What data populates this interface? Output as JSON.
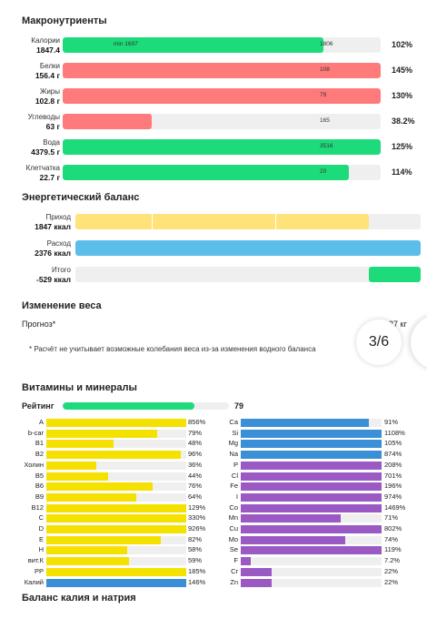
{
  "colors": {
    "green": "#1ddb7a",
    "red": "#ff7a7a",
    "yellow": "#ffe27a",
    "blue": "#5bbde8",
    "vit_yellow": "#f5e100",
    "vit_blue": "#3a8fd6",
    "purple": "#9b59c4",
    "track": "#efefef"
  },
  "macro": {
    "title": "Макронутриенты",
    "rows": [
      {
        "name": "Калории",
        "value": "1847.4",
        "fill": 0.82,
        "color": "green",
        "min": "min 1697",
        "mark": "1806",
        "pct": "102%"
      },
      {
        "name": "Белки",
        "value": "156.4 г",
        "fill": 1.0,
        "color": "red",
        "min": "",
        "mark": "108",
        "pct": "145%"
      },
      {
        "name": "Жиры",
        "value": "102.8 г",
        "fill": 1.0,
        "color": "red",
        "min": "",
        "mark": "79",
        "pct": "130%"
      },
      {
        "name": "Углеводы",
        "value": "63 г",
        "fill": 0.28,
        "color": "red",
        "min": "",
        "mark": "165",
        "pct": "38.2%"
      },
      {
        "name": "Вода",
        "value": "4379.5 г",
        "fill": 1.0,
        "color": "green",
        "min": "",
        "mark": "3516",
        "pct": "125%"
      },
      {
        "name": "Клетчатка",
        "value": "22.7 г",
        "fill": 0.9,
        "color": "green",
        "min": "",
        "mark": "20",
        "pct": "114%"
      }
    ]
  },
  "energy": {
    "title": "Энергетический баланс",
    "rows": [
      {
        "name": "Приход",
        "value": "1847 ккал",
        "fill_from": 0.0,
        "fill_to": 0.85,
        "color": "yellow"
      },
      {
        "name": "Расход",
        "value": "2376 ккал",
        "fill_from": 0.0,
        "fill_to": 1.0,
        "color": "blue"
      },
      {
        "name": "Итого",
        "value": "-529 ккал",
        "fill_from": 0.85,
        "fill_to": 1.0,
        "color": "green"
      }
    ]
  },
  "weight": {
    "title": "Изменение веса",
    "forecast_label": "Прогноз*",
    "forecast_value": "27 кг",
    "note": "* Расчёт не учитывает возможные колебания веса из-за изменения водного баланса"
  },
  "pager": {
    "label": "3/6"
  },
  "vitamins": {
    "title": "Витамины и минералы",
    "rating_label": "Рейтинг",
    "rating_value": "79",
    "rating_fill": 0.79,
    "left": [
      {
        "name": "A",
        "pct": "856%",
        "fill": 1.0,
        "color": "vit_yellow"
      },
      {
        "name": "b-car",
        "pct": "79%",
        "fill": 0.79,
        "color": "vit_yellow"
      },
      {
        "name": "B1",
        "pct": "48%",
        "fill": 0.48,
        "color": "vit_yellow"
      },
      {
        "name": "B2",
        "pct": "96%",
        "fill": 0.96,
        "color": "vit_yellow"
      },
      {
        "name": "Холин",
        "pct": "36%",
        "fill": 0.36,
        "color": "vit_yellow"
      },
      {
        "name": "B5",
        "pct": "44%",
        "fill": 0.44,
        "color": "vit_yellow"
      },
      {
        "name": "B6",
        "pct": "76%",
        "fill": 0.76,
        "color": "vit_yellow"
      },
      {
        "name": "B9",
        "pct": "64%",
        "fill": 0.64,
        "color": "vit_yellow"
      },
      {
        "name": "B12",
        "pct": "129%",
        "fill": 1.0,
        "color": "vit_yellow"
      },
      {
        "name": "C",
        "pct": "330%",
        "fill": 1.0,
        "color": "vit_yellow"
      },
      {
        "name": "D",
        "pct": "926%",
        "fill": 1.0,
        "color": "vit_yellow"
      },
      {
        "name": "E",
        "pct": "82%",
        "fill": 0.82,
        "color": "vit_yellow"
      },
      {
        "name": "H",
        "pct": "58%",
        "fill": 0.58,
        "color": "vit_yellow"
      },
      {
        "name": "вит.К",
        "pct": "59%",
        "fill": 0.59,
        "color": "vit_yellow"
      },
      {
        "name": "PP",
        "pct": "185%",
        "fill": 1.0,
        "color": "vit_yellow"
      },
      {
        "name": "Калий",
        "pct": "146%",
        "fill": 1.0,
        "color": "vit_blue"
      }
    ],
    "right": [
      {
        "name": "Ca",
        "pct": "91%",
        "fill": 0.91,
        "color": "vit_blue"
      },
      {
        "name": "Si",
        "pct": "1108%",
        "fill": 1.0,
        "color": "vit_blue"
      },
      {
        "name": "Mg",
        "pct": "105%",
        "fill": 1.0,
        "color": "vit_blue"
      },
      {
        "name": "Na",
        "pct": "874%",
        "fill": 1.0,
        "color": "vit_blue"
      },
      {
        "name": "P",
        "pct": "208%",
        "fill": 1.0,
        "color": "purple"
      },
      {
        "name": "Cl",
        "pct": "701%",
        "fill": 1.0,
        "color": "purple"
      },
      {
        "name": "Fe",
        "pct": "196%",
        "fill": 1.0,
        "color": "purple"
      },
      {
        "name": "I",
        "pct": "974%",
        "fill": 1.0,
        "color": "purple"
      },
      {
        "name": "Co",
        "pct": "1469%",
        "fill": 1.0,
        "color": "purple"
      },
      {
        "name": "Mn",
        "pct": "71%",
        "fill": 0.71,
        "color": "purple"
      },
      {
        "name": "Cu",
        "pct": "802%",
        "fill": 1.0,
        "color": "purple"
      },
      {
        "name": "Mo",
        "pct": "74%",
        "fill": 0.74,
        "color": "purple"
      },
      {
        "name": "Se",
        "pct": "119%",
        "fill": 1.0,
        "color": "purple"
      },
      {
        "name": "F",
        "pct": "7.2%",
        "fill": 0.072,
        "color": "purple"
      },
      {
        "name": "Cr",
        "pct": "22%",
        "fill": 0.22,
        "color": "purple"
      },
      {
        "name": "Zn",
        "pct": "22%",
        "fill": 0.22,
        "color": "purple"
      }
    ]
  },
  "balance": {
    "title": "Баланс калия и натрия"
  }
}
